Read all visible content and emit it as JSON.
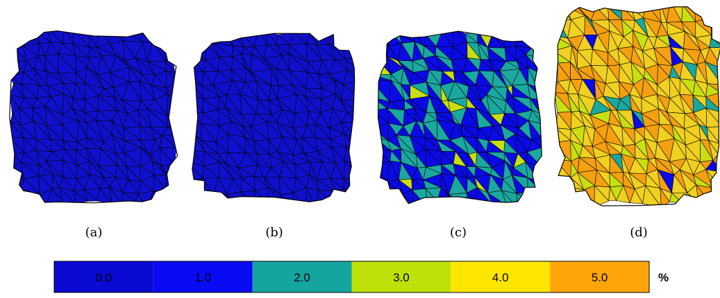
{
  "panels": [
    {
      "label": "(a)"
    },
    {
      "label": "(b)"
    },
    {
      "label": "(c)"
    },
    {
      "label": "(d)"
    }
  ],
  "colorbar": {
    "items": [
      {
        "label": "0.0",
        "color": "#0a0ad2"
      },
      {
        "label": "1.0",
        "color": "#0a0af5"
      },
      {
        "label": "2.0",
        "color": "#14a5a0"
      },
      {
        "label": "3.0",
        "color": "#bee10a"
      },
      {
        "label": "4.0",
        "color": "#ffe600"
      },
      {
        "label": "5.0",
        "color": "#ffa50a"
      }
    ],
    "unit": "%"
  }
}
